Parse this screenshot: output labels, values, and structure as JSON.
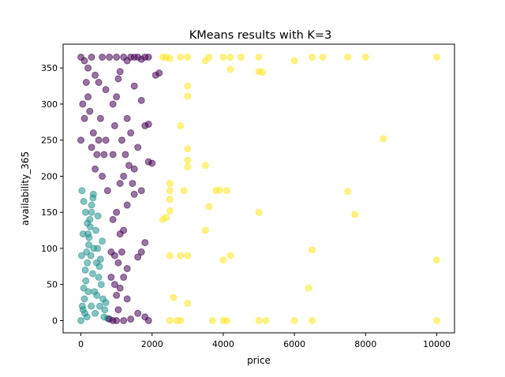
{
  "chart_data": {
    "type": "scatter",
    "title": "KMeans results with K=3",
    "xlabel": "price",
    "ylabel": "availability_365",
    "xlim": [
      -500,
      10500
    ],
    "ylim": [
      -17,
      383
    ],
    "xticks": [
      0,
      2000,
      4000,
      6000,
      8000,
      10000
    ],
    "xtick_labels": [
      "0",
      "2000",
      "4000",
      "6000",
      "8000",
      "10000"
    ],
    "yticks": [
      0,
      50,
      100,
      150,
      200,
      250,
      300,
      350
    ],
    "ytick_labels": [
      "0",
      "50",
      "100",
      "150",
      "200",
      "250",
      "300",
      "350"
    ],
    "grid": false,
    "legend": "none",
    "point_alpha": 0.55,
    "clusters": [
      {
        "color": "#21918c",
        "points": [
          [
            0,
            0
          ],
          [
            40,
            20
          ],
          [
            80,
            45
          ],
          [
            120,
            70
          ],
          [
            160,
            95
          ],
          [
            200,
            120
          ],
          [
            250,
            140
          ],
          [
            300,
            160
          ],
          [
            350,
            175
          ],
          [
            60,
            15
          ],
          [
            100,
            30
          ],
          [
            140,
            55
          ],
          [
            180,
            80
          ],
          [
            220,
            105
          ],
          [
            260,
            130
          ],
          [
            300,
            150
          ],
          [
            340,
            170
          ],
          [
            400,
            10
          ],
          [
            450,
            35
          ],
          [
            500,
            60
          ],
          [
            550,
            85
          ],
          [
            600,
            110
          ],
          [
            650,
            5
          ],
          [
            700,
            25
          ],
          [
            750,
            3
          ],
          [
            30,
            180
          ],
          [
            80,
            165
          ],
          [
            130,
            150
          ],
          [
            180,
            135
          ],
          [
            230,
            115
          ],
          [
            280,
            90
          ],
          [
            330,
            65
          ],
          [
            380,
            40
          ],
          [
            420,
            125
          ],
          [
            470,
            100
          ],
          [
            520,
            75
          ],
          [
            570,
            50
          ],
          [
            620,
            30
          ],
          [
            670,
            15
          ],
          [
            20,
            90
          ],
          [
            60,
            120
          ],
          [
            110,
            10
          ],
          [
            170,
            5
          ],
          [
            210,
            40
          ],
          [
            290,
            20
          ],
          [
            360,
            100
          ],
          [
            440,
            80
          ],
          [
            480,
            145
          ],
          [
            530,
            20
          ]
        ]
      },
      {
        "color": "#440154",
        "points": [
          [
            0,
            365
          ],
          [
            100,
            360
          ],
          [
            200,
            350
          ],
          [
            300,
            365
          ],
          [
            400,
            340
          ],
          [
            500,
            330
          ],
          [
            600,
            365
          ],
          [
            700,
            320
          ],
          [
            800,
            365
          ],
          [
            900,
            300
          ],
          [
            1000,
            365
          ],
          [
            1100,
            345
          ],
          [
            1200,
            365
          ],
          [
            1300,
            360
          ],
          [
            1400,
            365
          ],
          [
            1500,
            365
          ],
          [
            1600,
            365
          ],
          [
            1700,
            362
          ],
          [
            1800,
            365
          ],
          [
            1900,
            365
          ],
          [
            1500,
            325
          ],
          [
            1700,
            305
          ],
          [
            1800,
            270
          ],
          [
            1900,
            272
          ],
          [
            1300,
            280
          ],
          [
            1400,
            260
          ],
          [
            1600,
            240
          ],
          [
            1900,
            220
          ],
          [
            2000,
            218
          ],
          [
            1500,
            210
          ],
          [
            1200,
            200
          ],
          [
            1100,
            190
          ],
          [
            1700,
            180
          ],
          [
            1500,
            175
          ],
          [
            1300,
            160
          ],
          [
            1000,
            150
          ],
          [
            900,
            140
          ],
          [
            1100,
            120
          ],
          [
            1200,
            125
          ],
          [
            1800,
            108
          ],
          [
            1700,
            95
          ],
          [
            1600,
            88
          ],
          [
            1300,
            72
          ],
          [
            1200,
            60
          ],
          [
            1100,
            45
          ],
          [
            1000,
            35
          ],
          [
            1300,
            30
          ],
          [
            1600,
            10
          ],
          [
            1800,
            5
          ],
          [
            1900,
            0
          ],
          [
            1400,
            2
          ],
          [
            1200,
            0
          ],
          [
            1000,
            0
          ],
          [
            900,
            0
          ],
          [
            800,
            2
          ],
          [
            850,
            95
          ],
          [
            750,
            180
          ],
          [
            700,
            250
          ],
          [
            650,
            230
          ],
          [
            600,
            200
          ],
          [
            550,
            280
          ],
          [
            500,
            250
          ],
          [
            450,
            230
          ],
          [
            400,
            210
          ],
          [
            350,
            260
          ],
          [
            300,
            240
          ],
          [
            250,
            290
          ],
          [
            200,
            310
          ],
          [
            150,
            330
          ],
          [
            100,
            280
          ],
          [
            50,
            300
          ],
          [
            0,
            250
          ],
          [
            2100,
            340
          ],
          [
            2200,
            343
          ],
          [
            950,
            90
          ],
          [
            1050,
            80
          ],
          [
            1150,
            95
          ],
          [
            850,
            60
          ],
          [
            950,
            50
          ],
          [
            1050,
            15
          ],
          [
            900,
            230
          ],
          [
            950,
            270
          ],
          [
            1000,
            310
          ],
          [
            1050,
            335
          ],
          [
            1150,
            250
          ],
          [
            1250,
            230
          ],
          [
            1350,
            215
          ],
          [
            1450,
            190
          ]
        ]
      },
      {
        "color": "#fde725",
        "points": [
          [
            2300,
            365
          ],
          [
            2400,
            365
          ],
          [
            2500,
            363
          ],
          [
            2800,
            365
          ],
          [
            3000,
            365
          ],
          [
            3500,
            360
          ],
          [
            3600,
            365
          ],
          [
            4000,
            365
          ],
          [
            4200,
            365
          ],
          [
            4500,
            365
          ],
          [
            5000,
            365
          ],
          [
            6000,
            360
          ],
          [
            6500,
            365
          ],
          [
            6800,
            365
          ],
          [
            7500,
            365
          ],
          [
            8000,
            365
          ],
          [
            10000,
            365
          ],
          [
            4200,
            348
          ],
          [
            5000,
            345
          ],
          [
            5100,
            344
          ],
          [
            3000,
            325
          ],
          [
            3000,
            311
          ],
          [
            2800,
            270
          ],
          [
            8500,
            252
          ],
          [
            3000,
            238
          ],
          [
            3000,
            222
          ],
          [
            3000,
            213
          ],
          [
            3500,
            215
          ],
          [
            2500,
            190
          ],
          [
            2500,
            180
          ],
          [
            2900,
            180
          ],
          [
            3800,
            180
          ],
          [
            3900,
            181
          ],
          [
            4100,
            180
          ],
          [
            7500,
            179
          ],
          [
            2500,
            168
          ],
          [
            3600,
            158
          ],
          [
            2500,
            152
          ],
          [
            5000,
            150
          ],
          [
            7700,
            147
          ],
          [
            2300,
            140
          ],
          [
            2400,
            143
          ],
          [
            3500,
            125
          ],
          [
            6500,
            98
          ],
          [
            2500,
            90
          ],
          [
            2800,
            90
          ],
          [
            3000,
            90
          ],
          [
            4200,
            90
          ],
          [
            4000,
            84
          ],
          [
            10000,
            84
          ],
          [
            6400,
            45
          ],
          [
            2600,
            32
          ],
          [
            3000,
            24
          ],
          [
            2500,
            0
          ],
          [
            2700,
            0
          ],
          [
            2800,
            0
          ],
          [
            3700,
            0
          ],
          [
            4000,
            0
          ],
          [
            4100,
            0
          ],
          [
            5000,
            0
          ],
          [
            5200,
            0
          ],
          [
            6000,
            0
          ],
          [
            6500,
            0
          ],
          [
            10000,
            0
          ]
        ]
      }
    ]
  }
}
